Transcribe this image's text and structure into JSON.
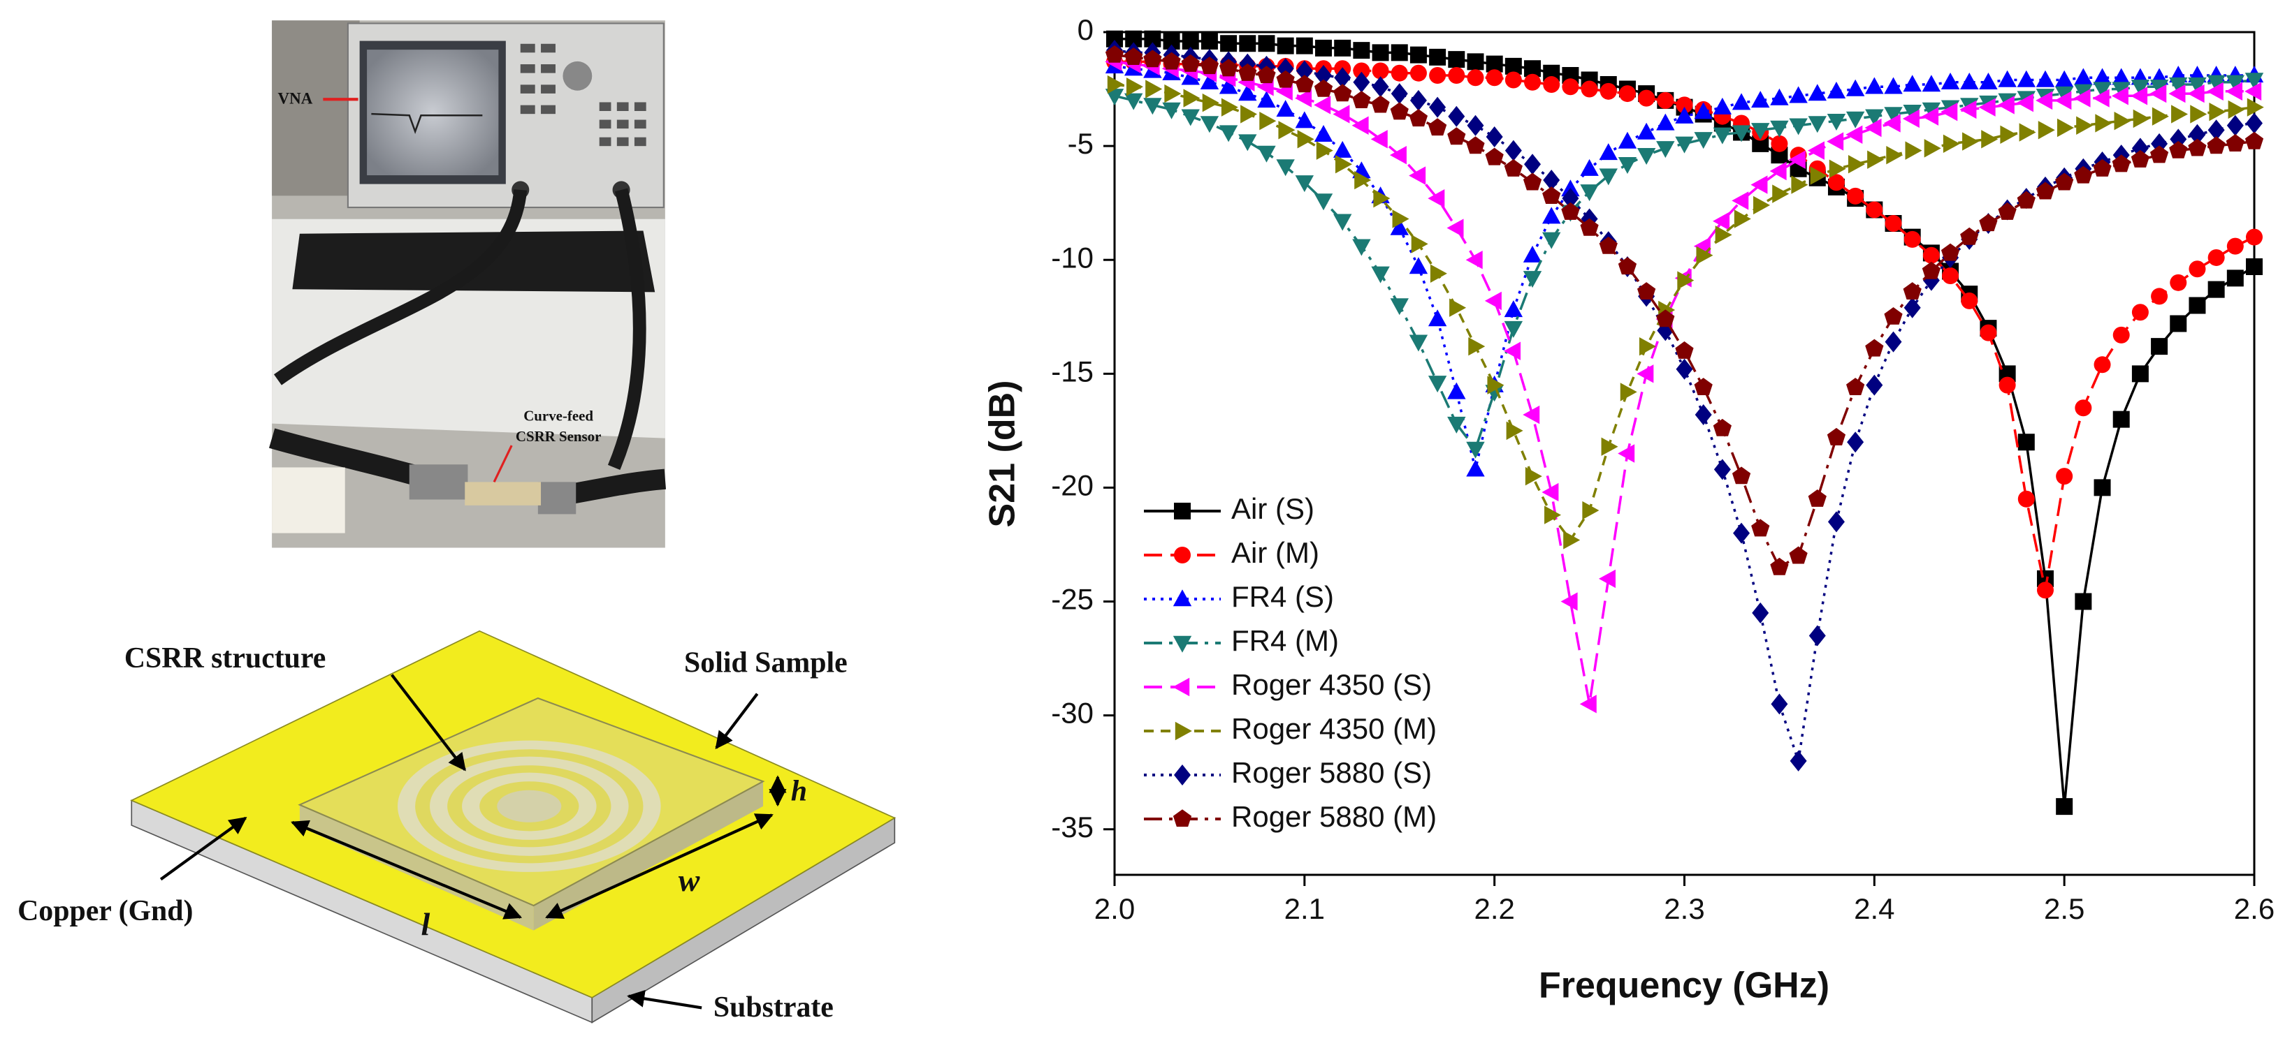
{
  "figure": {
    "photo_labels": {
      "vna": "VNA",
      "sensor_line1": "Curve-feed",
      "sensor_line2": "CSRR Sensor"
    },
    "diagram_labels": {
      "csrr": "CSRR structure",
      "sample": "Solid Sample",
      "copper": "Copper (Gnd)",
      "substrate": "Substrate",
      "l": "l",
      "w": "w",
      "h": "h"
    }
  },
  "chart_data": {
    "type": "line",
    "x_label": "Frequency (GHz)",
    "y_label": "S21 (dB)",
    "xlim": [
      2,
      2.6
    ],
    "ylim": [
      -37,
      0
    ],
    "xticks": [
      {
        "value": 2,
        "label": "2.0"
      },
      2.1,
      2.2,
      2.3,
      2.4,
      2.5,
      2.6
    ],
    "yticks": [
      0,
      -5,
      -10,
      -15,
      -20,
      -25,
      -30,
      -35
    ],
    "legend": "lower left",
    "x": [
      2,
      2.01,
      2.02,
      2.03,
      2.04,
      2.05,
      2.06,
      2.07,
      2.08,
      2.09,
      2.1,
      2.11,
      2.12,
      2.13,
      2.14,
      2.15,
      2.16,
      2.17,
      2.18,
      2.19,
      2.2,
      2.21,
      2.22,
      2.23,
      2.24,
      2.25,
      2.26,
      2.27,
      2.28,
      2.29,
      2.3,
      2.31,
      2.32,
      2.33,
      2.34,
      2.35,
      2.36,
      2.37,
      2.38,
      2.39,
      2.4,
      2.41,
      2.42,
      2.43,
      2.44,
      2.45,
      2.46,
      2.47,
      2.48,
      2.49,
      2.5,
      2.51,
      2.52,
      2.53,
      2.54,
      2.55,
      2.56,
      2.57,
      2.58,
      2.59,
      2.6
    ],
    "series": [
      {
        "name": "Air (S)",
        "color": "#000000",
        "marker": "square",
        "dash": "solid",
        "values": [
          -0.3,
          -0.3,
          -0.3,
          -0.4,
          -0.4,
          -0.4,
          -0.5,
          -0.5,
          -0.5,
          -0.6,
          -0.6,
          -0.7,
          -0.7,
          -0.8,
          -0.9,
          -0.9,
          -1.0,
          -1.1,
          -1.2,
          -1.3,
          -1.4,
          -1.5,
          -1.6,
          -1.8,
          -1.9,
          -2.1,
          -2.3,
          -2.5,
          -2.7,
          -3.0,
          -3.3,
          -3.6,
          -4.0,
          -4.4,
          -4.9,
          -5.4,
          -6.0,
          -6.4,
          -6.8,
          -7.3,
          -7.8,
          -8.4,
          -9.0,
          -9.7,
          -10.5,
          -11.5,
          -13.0,
          -15.0,
          -18.0,
          -24.0,
          -34.0,
          -25.0,
          -20.0,
          -17.0,
          -15.0,
          -13.8,
          -12.8,
          -12.0,
          -11.3,
          -10.8,
          -10.3
        ]
      },
      {
        "name": "Air (M)",
        "color": "#ff0000",
        "marker": "circle",
        "dash": "dashed",
        "values": [
          -1.3,
          -1.3,
          -1.3,
          -1.4,
          -1.4,
          -1.4,
          -1.4,
          -1.5,
          -1.5,
          -1.5,
          -1.6,
          -1.6,
          -1.6,
          -1.7,
          -1.7,
          -1.8,
          -1.8,
          -1.9,
          -1.9,
          -2.0,
          -2.0,
          -2.1,
          -2.2,
          -2.3,
          -2.4,
          -2.5,
          -2.6,
          -2.7,
          -2.9,
          -3.0,
          -3.2,
          -3.4,
          -3.7,
          -4.0,
          -4.4,
          -4.9,
          -5.4,
          -6.0,
          -6.6,
          -7.2,
          -7.8,
          -8.4,
          -9.1,
          -9.8,
          -10.7,
          -11.8,
          -13.2,
          -15.5,
          -20.5,
          -24.5,
          -19.5,
          -16.5,
          -14.6,
          -13.3,
          -12.3,
          -11.6,
          -11.0,
          -10.4,
          -9.9,
          -9.4,
          -9.0
        ]
      },
      {
        "name": "FR4 (S)",
        "color": "#0000ff",
        "marker": "triangle-up",
        "dash": "dotted",
        "values": [
          -1.5,
          -1.6,
          -1.7,
          -1.8,
          -2.0,
          -2.2,
          -2.4,
          -2.7,
          -3.0,
          -3.4,
          -3.9,
          -4.5,
          -5.2,
          -6.1,
          -7.2,
          -8.6,
          -10.3,
          -12.6,
          -15.8,
          -19.2,
          -15.5,
          -12.2,
          -9.8,
          -8.1,
          -6.9,
          -6.0,
          -5.3,
          -4.8,
          -4.4,
          -4.0,
          -3.7,
          -3.5,
          -3.3,
          -3.1,
          -3.0,
          -2.9,
          -2.8,
          -2.7,
          -2.6,
          -2.5,
          -2.4,
          -2.4,
          -2.3,
          -2.3,
          -2.2,
          -2.2,
          -2.2,
          -2.1,
          -2.1,
          -2.1,
          -2.1,
          -2.0,
          -2.0,
          -2.0,
          -2.0,
          -2.0,
          -1.9,
          -1.9,
          -1.9,
          -1.9,
          -1.9
        ]
      },
      {
        "name": "FR4 (M)",
        "color": "#1b7a74",
        "marker": "triangle-down",
        "dash": "dash-dot",
        "values": [
          -2.8,
          -3.0,
          -3.2,
          -3.4,
          -3.7,
          -4.0,
          -4.4,
          -4.8,
          -5.3,
          -5.9,
          -6.6,
          -7.4,
          -8.3,
          -9.4,
          -10.6,
          -12.0,
          -13.6,
          -15.4,
          -17.2,
          -18.3,
          -15.8,
          -13.0,
          -10.8,
          -9.1,
          -7.9,
          -7.0,
          -6.3,
          -5.8,
          -5.4,
          -5.1,
          -4.9,
          -4.7,
          -4.5,
          -4.4,
          -4.3,
          -4.2,
          -4.1,
          -4.0,
          -3.9,
          -3.8,
          -3.7,
          -3.6,
          -3.5,
          -3.4,
          -3.3,
          -3.2,
          -3.1,
          -3.0,
          -2.9,
          -2.8,
          -2.7,
          -2.6,
          -2.5,
          -2.5,
          -2.4,
          -2.4,
          -2.3,
          -2.3,
          -2.2,
          -2.2,
          -2.1
        ]
      },
      {
        "name": "Roger 4350 (S)",
        "color": "#ff00ff",
        "marker": "triangle-left",
        "dash": "dashed",
        "values": [
          -1.3,
          -1.4,
          -1.5,
          -1.6,
          -1.7,
          -1.8,
          -2.0,
          -2.2,
          -2.4,
          -2.6,
          -2.9,
          -3.2,
          -3.6,
          -4.1,
          -4.7,
          -5.4,
          -6.3,
          -7.3,
          -8.6,
          -10.0,
          -11.8,
          -14.0,
          -16.8,
          -20.2,
          -25.0,
          -29.5,
          -24.0,
          -18.5,
          -15.0,
          -12.6,
          -10.8,
          -9.4,
          -8.3,
          -7.4,
          -6.7,
          -6.1,
          -5.6,
          -5.2,
          -4.8,
          -4.5,
          -4.2,
          -4.0,
          -3.8,
          -3.7,
          -3.5,
          -3.4,
          -3.3,
          -3.2,
          -3.1,
          -3.0,
          -3.0,
          -2.9,
          -2.9,
          -2.8,
          -2.8,
          -2.7,
          -2.7,
          -2.7,
          -2.6,
          -2.6,
          -2.6
        ]
      },
      {
        "name": "Roger 4350 (M)",
        "color": "#808000",
        "marker": "triangle-right",
        "dash": "short-dash",
        "values": [
          -2.3,
          -2.4,
          -2.5,
          -2.7,
          -2.9,
          -3.1,
          -3.3,
          -3.6,
          -3.9,
          -4.3,
          -4.7,
          -5.2,
          -5.8,
          -6.5,
          -7.3,
          -8.2,
          -9.3,
          -10.6,
          -12.1,
          -13.8,
          -15.5,
          -17.5,
          -19.5,
          -21.2,
          -22.3,
          -21.0,
          -18.2,
          -15.8,
          -13.8,
          -12.2,
          -10.9,
          -9.8,
          -8.9,
          -8.2,
          -7.6,
          -7.1,
          -6.7,
          -6.3,
          -6.0,
          -5.8,
          -5.6,
          -5.4,
          -5.2,
          -5.1,
          -4.9,
          -4.8,
          -4.7,
          -4.5,
          -4.4,
          -4.3,
          -4.2,
          -4.1,
          -4.0,
          -3.9,
          -3.8,
          -3.7,
          -3.6,
          -3.6,
          -3.5,
          -3.4,
          -3.3
        ]
      },
      {
        "name": "Roger 5880 (S)",
        "color": "#000080",
        "marker": "diamond",
        "dash": "dotted",
        "values": [
          -0.8,
          -0.9,
          -0.9,
          -1.0,
          -1.1,
          -1.2,
          -1.3,
          -1.4,
          -1.5,
          -1.6,
          -1.7,
          -1.9,
          -2.0,
          -2.2,
          -2.4,
          -2.7,
          -3.0,
          -3.3,
          -3.7,
          -4.1,
          -4.6,
          -5.2,
          -5.8,
          -6.5,
          -7.3,
          -8.2,
          -9.2,
          -10.3,
          -11.6,
          -13.1,
          -14.8,
          -16.8,
          -19.2,
          -22.0,
          -25.5,
          -29.5,
          -32.0,
          -26.5,
          -21.5,
          -18.0,
          -15.5,
          -13.6,
          -12.1,
          -10.9,
          -9.9,
          -9.1,
          -8.4,
          -7.8,
          -7.3,
          -6.8,
          -6.4,
          -6.0,
          -5.7,
          -5.4,
          -5.1,
          -4.9,
          -4.7,
          -4.5,
          -4.3,
          -4.1,
          -4.0
        ]
      },
      {
        "name": "Roger 5880 (M)",
        "color": "#800000",
        "marker": "pentagon",
        "dash": "dash-dot",
        "values": [
          -1.0,
          -1.1,
          -1.2,
          -1.3,
          -1.4,
          -1.5,
          -1.6,
          -1.8,
          -1.9,
          -2.1,
          -2.3,
          -2.5,
          -2.7,
          -3.0,
          -3.2,
          -3.5,
          -3.8,
          -4.2,
          -4.6,
          -5.0,
          -5.5,
          -6.0,
          -6.6,
          -7.2,
          -7.9,
          -8.6,
          -9.4,
          -10.3,
          -11.4,
          -12.6,
          -14.0,
          -15.6,
          -17.4,
          -19.5,
          -21.8,
          -23.5,
          -23.0,
          -20.5,
          -17.8,
          -15.6,
          -13.9,
          -12.5,
          -11.4,
          -10.5,
          -9.7,
          -9.0,
          -8.4,
          -7.9,
          -7.4,
          -7.0,
          -6.6,
          -6.3,
          -6.0,
          -5.8,
          -5.6,
          -5.4,
          -5.2,
          -5.1,
          -5.0,
          -4.9,
          -4.8
        ]
      }
    ]
  }
}
